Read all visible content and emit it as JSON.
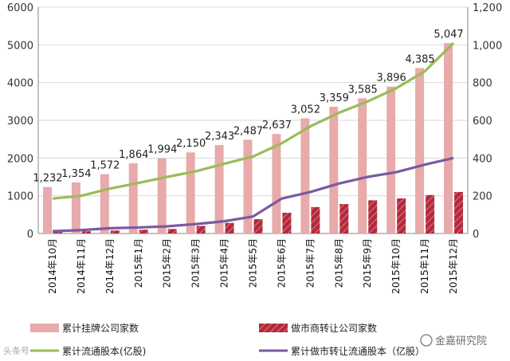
{
  "chart_data": {
    "type": "bar+line",
    "categories": [
      "2014年10月",
      "2014年11月",
      "2014年12月",
      "2015年1月",
      "2015年2月",
      "2015年3月",
      "2015年4月",
      "2015年5月",
      "2015年6月",
      "2015年7月",
      "2015年8月",
      "2015年9月",
      "2015年10月",
      "2015年11月",
      "2015年12月"
    ],
    "left_axis": {
      "min": 0,
      "max": 6000,
      "ticks": [
        "0",
        "1000",
        "2000",
        "3000",
        "4000",
        "5000",
        "6000"
      ]
    },
    "right_axis": {
      "min": 0,
      "max": 1200,
      "ticks": [
        "0",
        "200",
        "400",
        "600",
        "800",
        "1,000",
        "1,200"
      ]
    },
    "series": [
      {
        "name": "累计挂牌公司家数",
        "kind": "bar",
        "axis": "left",
        "color": "#e8aaaa",
        "values": [
          1232,
          1354,
          1572,
          1864,
          1994,
          2150,
          2343,
          2487,
          2637,
          3052,
          3359,
          3585,
          3896,
          4385,
          5047
        ],
        "labels": [
          "1,232",
          "1,354",
          "1,572",
          "1,864",
          "1,994",
          "2,150",
          "2,343",
          "2,487",
          "2,637",
          "3,052",
          "3,359",
          "3,585",
          "3,896",
          "4,385",
          "5,047"
        ]
      },
      {
        "name": "做市商转让公司家数",
        "kind": "bar",
        "axis": "left",
        "color": "#b22a3c",
        "values": [
          50,
          60,
          80,
          100,
          120,
          200,
          280,
          380,
          550,
          700,
          780,
          880,
          930,
          1020,
          1100
        ]
      },
      {
        "name": "累计流通股本(亿股)",
        "kind": "line",
        "axis": "right",
        "color": "#9bbb59",
        "values": [
          185,
          200,
          238,
          268,
          300,
          330,
          370,
          408,
          478,
          568,
          640,
          700,
          770,
          860,
          1010
        ]
      },
      {
        "name": "累计做市转让流通股本（亿股）",
        "kind": "line",
        "axis": "right",
        "color": "#7a5aa0",
        "values": [
          12,
          18,
          28,
          32,
          38,
          50,
          65,
          90,
          185,
          220,
          265,
          300,
          325,
          365,
          400
        ]
      }
    ]
  },
  "watermark": {
    "left": "头条号",
    "right": "金嘉研究院"
  }
}
